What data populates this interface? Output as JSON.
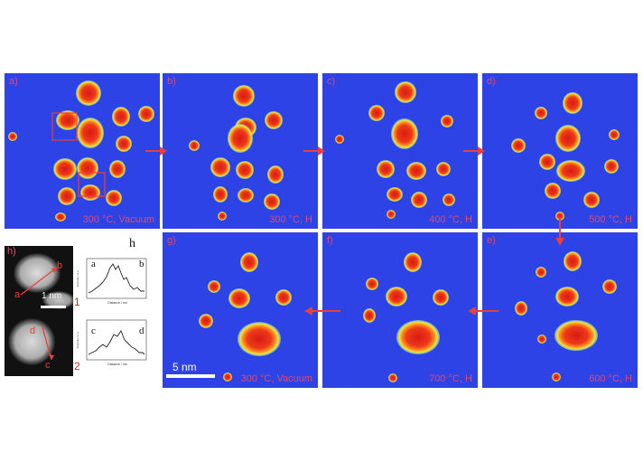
{
  "panels": [
    {
      "key": "a",
      "label": "a)",
      "condition": "300 °C, Vacuum"
    },
    {
      "key": "b",
      "label": "b)",
      "condition": "300 °C, H"
    },
    {
      "key": "c",
      "label": "c)",
      "condition": "400 °C, H"
    },
    {
      "key": "d",
      "label": "d)",
      "condition": "500 °C, H"
    },
    {
      "key": "e",
      "label": "e)",
      "condition": "600 °C, H"
    },
    {
      "key": "f",
      "label": "f)",
      "condition": "700 °C, H"
    },
    {
      "key": "g",
      "label": "g)",
      "condition": "300 °C, Vacuum"
    }
  ],
  "scale_bar": {
    "label": "5 nm"
  },
  "inset": {
    "label_left": "h)",
    "label_right": "h",
    "scale_bar_label": "1 nm",
    "point_labels": [
      "a",
      "b",
      "c",
      "d"
    ],
    "profile_numbers": [
      "1",
      "2"
    ],
    "profile_xlabel": "Distance / nm",
    "profile_ylabel": "Intensity / a.u."
  },
  "colors": {
    "background_blue": "#2d43e6",
    "particle_red": "#e2281c",
    "arrow_red": "#e8403a",
    "label_pink": "#e04a70"
  }
}
